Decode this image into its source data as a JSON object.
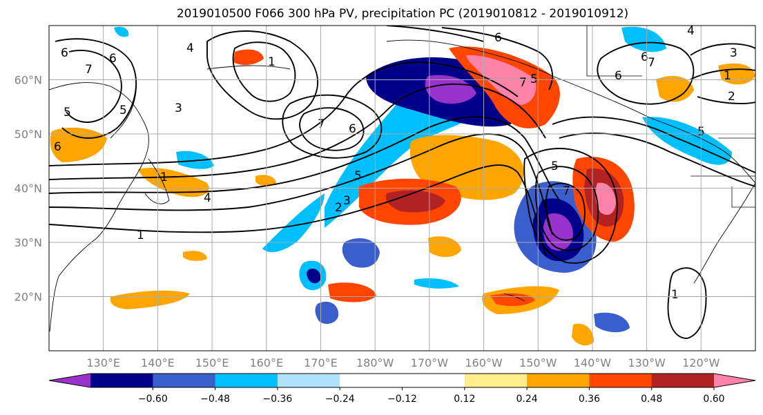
{
  "title": "2019010500 F066 300 hPa PV, precipitation PC (2019010812 - 2019010912)",
  "map": {
    "lat_labels": [
      "60°N",
      "50°N",
      "40°N",
      "30°N",
      "20°N"
    ],
    "lon_labels": [
      "130°E",
      "140°E",
      "150°E",
      "160°E",
      "170°E",
      "180°W",
      "170°W",
      "160°W",
      "150°W",
      "140°W",
      "130°W",
      "120°W"
    ],
    "lat_values": [
      60,
      50,
      40,
      30,
      20
    ],
    "lon_values": [
      130,
      140,
      150,
      160,
      170,
      180,
      190,
      200,
      210,
      220,
      230,
      240
    ],
    "lon_range": [
      120,
      250
    ],
    "lat_range": [
      10,
      70
    ],
    "grid": true
  },
  "colorbar": {
    "colors": [
      "#9932cc",
      "#00008b",
      "#3a5fcd",
      "#00bfff",
      "#b0e2ff",
      "#ffffff",
      "#ffffff",
      "#ffec8b",
      "#ffa500",
      "#ff4500",
      "#b22222",
      "#ff82ab"
    ],
    "tick_labels": [
      "−0.60",
      "−0.48",
      "−0.36",
      "−0.24",
      "−0.12",
      "0.12",
      "0.24",
      "0.36",
      "0.48",
      "0.60"
    ],
    "extend": "both"
  },
  "contour_labels": [
    "6",
    "4",
    "7",
    "6",
    "1",
    "5",
    "3",
    "5",
    "6",
    "1",
    "7",
    "6",
    "5",
    "4",
    "2",
    "3",
    "1",
    "6",
    "7",
    "5",
    "7",
    "6",
    "4",
    "6",
    "7",
    "3",
    "1",
    "2",
    "5",
    "5",
    "1"
  ]
}
